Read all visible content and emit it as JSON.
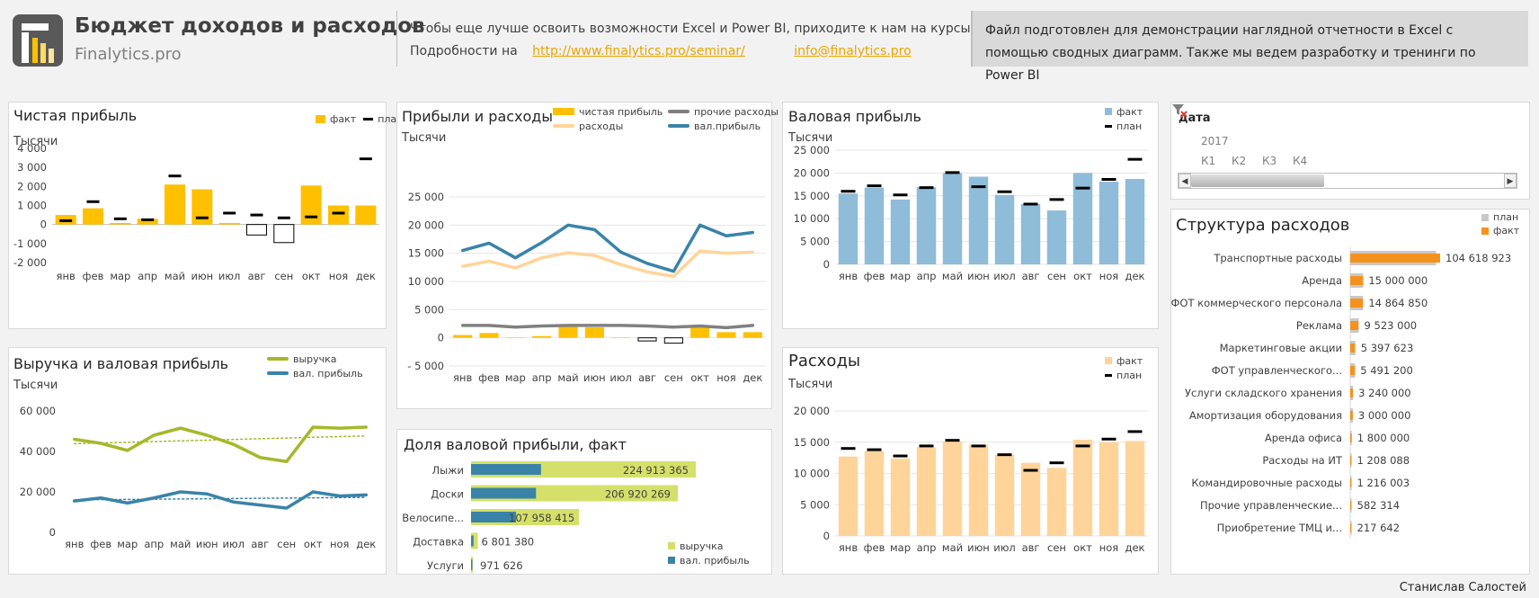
{
  "header": {
    "title": "Бюджет доходов и расходов",
    "subtitle": "Finalytics.pro",
    "promo_line1": "Чтобы еще лучше освоить возможности Excel и Power BI, приходите к нам на курсы.",
    "promo_line2_prefix": "Подробности на",
    "seminar_link": "http://www.finalytics.pro/seminar/",
    "email_link": "info@finalytics.pro",
    "note": "Файл подготовлен для демонстрации наглядной отчетности в Excel с помощью сводных диаграмм. Также мы ведем разработку и тренинги по Power BI"
  },
  "colors": {
    "yellow": "#ffc000",
    "lightblue": "#8fbcd8",
    "peach": "#ffd49a",
    "green": "#a6b82a",
    "lime": "#d4e06a",
    "blue": "#3a83a8",
    "gray": "#808080",
    "orange": "#f5921e",
    "lightgray": "#c8c8c8"
  },
  "months": [
    "янв",
    "фев",
    "мар",
    "апр",
    "май",
    "июн",
    "июл",
    "авг",
    "сен",
    "окт",
    "ноя",
    "дек"
  ],
  "chart_data": [
    {
      "id": "net_profit",
      "type": "bar",
      "title": "Чистая прибыль",
      "ylabel": "Тысячи",
      "ylim": [
        -2000,
        4000
      ],
      "yticks": [
        "4 000",
        "3 000",
        "2 000",
        "1 000",
        "0",
        "-1 000",
        "-2 000"
      ],
      "legend": [
        "факт",
        "план"
      ],
      "series": [
        {
          "name": "факт",
          "values": [
            500,
            850,
            80,
            300,
            2100,
            1850,
            80,
            -550,
            -950,
            2050,
            1000,
            1000
          ]
        },
        {
          "name": "план",
          "values": [
            200,
            1200,
            300,
            250,
            2550,
            350,
            600,
            500,
            350,
            400,
            600,
            3450
          ]
        }
      ]
    },
    {
      "id": "revenue_gross",
      "type": "line",
      "title": "Выручка и валовая прибыль",
      "ylabel": "Тысячи",
      "ylim": [
        0,
        60000
      ],
      "yticks": [
        "60 000",
        "40 000",
        "20 000",
        "0"
      ],
      "legend": [
        "выручка",
        "вал. прибыль"
      ],
      "series": [
        {
          "name": "выручка",
          "values": [
            46000,
            44000,
            40500,
            48000,
            51500,
            48000,
            43500,
            37000,
            35000,
            52000,
            51500,
            52000
          ]
        },
        {
          "name": "вал. прибыль",
          "values": [
            15500,
            17000,
            14500,
            17000,
            20000,
            19000,
            15000,
            13500,
            12000,
            20000,
            18000,
            18500
          ]
        }
      ]
    },
    {
      "id": "profit_expenses",
      "type": "line",
      "title": "Прибыли и расходы",
      "ylabel": "Тысячи",
      "ylim": [
        -5000,
        25000
      ],
      "yticks": [
        "25 000",
        "20 000",
        "15 000",
        "10 000",
        "5 000",
        "0",
        "- 5 000"
      ],
      "legend": [
        "чистая прибыль",
        "прочие расходы",
        "расходы",
        "вал.прибыль"
      ],
      "series": [
        {
          "name": "чистая прибыль",
          "values": [
            500,
            850,
            80,
            300,
            2100,
            1850,
            80,
            -550,
            -950,
            2050,
            1000,
            1000
          ]
        },
        {
          "name": "прочие расходы",
          "values": [
            2200,
            2200,
            1900,
            2100,
            2200,
            2200,
            2200,
            2100,
            1900,
            2100,
            1800,
            2200
          ]
        },
        {
          "name": "расходы",
          "values": [
            12700,
            13600,
            12400,
            14200,
            15100,
            14600,
            13000,
            11700,
            10900,
            15400,
            15000,
            15200
          ]
        },
        {
          "name": "вал.прибыль",
          "values": [
            15500,
            16800,
            14200,
            16900,
            20000,
            19200,
            15200,
            13200,
            11800,
            20000,
            18100,
            18700
          ]
        }
      ]
    },
    {
      "id": "gross_share",
      "type": "bar",
      "title": "Доля валовой прибыли, факт",
      "categories": [
        "Лыжи",
        "Доски",
        "Велосипе...",
        "Доставка",
        "Услуги"
      ],
      "labels": [
        "224 913 365",
        "206 920 269",
        "107 958 415",
        "6 801 380",
        "971 626"
      ],
      "legend": [
        "выручка",
        "вал. прибыль"
      ],
      "series": [
        {
          "name": "выручка",
          "values": [
            224913365,
            206920269,
            107958415,
            6801380,
            971626
          ]
        },
        {
          "name": "вал. прибыль",
          "values": [
            70000000,
            65000000,
            45000000,
            2500000,
            400000
          ]
        }
      ]
    },
    {
      "id": "gross_profit",
      "type": "bar",
      "title": "Валовая прибыль",
      "ylabel": "Тысячи",
      "ylim": [
        0,
        25000
      ],
      "yticks": [
        "25 000",
        "20 000",
        "15 000",
        "10 000",
        "5 000",
        "0"
      ],
      "legend": [
        "факт",
        "план"
      ],
      "series": [
        {
          "name": "факт",
          "values": [
            15500,
            16800,
            14200,
            16900,
            20000,
            19200,
            15200,
            13200,
            11800,
            20000,
            18100,
            18700
          ]
        },
        {
          "name": "план",
          "values": [
            16000,
            17200,
            15200,
            16800,
            20100,
            17000,
            15900,
            13200,
            14200,
            16700,
            18600,
            23000
          ]
        }
      ]
    },
    {
      "id": "expenses",
      "type": "bar",
      "title": "Расходы",
      "ylabel": "Тысячи",
      "ylim": [
        0,
        20000
      ],
      "yticks": [
        "20 000",
        "15 000",
        "10 000",
        "5 000",
        "0"
      ],
      "legend": [
        "факт",
        "план"
      ],
      "series": [
        {
          "name": "факт",
          "values": [
            12700,
            13600,
            12400,
            14200,
            15100,
            14600,
            13000,
            11700,
            10900,
            15400,
            15000,
            15200
          ]
        },
        {
          "name": "план",
          "values": [
            14000,
            13800,
            12800,
            14400,
            15300,
            14400,
            13000,
            10500,
            11700,
            14400,
            15500,
            16700
          ]
        }
      ]
    },
    {
      "id": "expense_structure",
      "type": "bar",
      "title": "Структура расходов",
      "legend": [
        "план",
        "факт"
      ],
      "categories": [
        "Транспортные расходы",
        "Аренда",
        "ФОТ коммерческого персонала",
        "Реклама",
        "Маркетинговые акции",
        "ФОТ управленческого...",
        "Услуги складского хранения",
        "Амортизация оборудования",
        "Аренда офиса",
        "Расходы на ИТ",
        "Командировочные расходы",
        "Прочие управленческие...",
        "Приобретение ТМЦ и..."
      ],
      "labels": [
        "104 618 923",
        "15 000 000",
        "14 864 850",
        "9 523 000",
        "5 397 623",
        "5 491 200",
        "3 240 000",
        "3 000 000",
        "1 800 000",
        "1 208 088",
        "1 216 003",
        "582 314",
        "217 642"
      ],
      "series": [
        {
          "name": "план",
          "values": [
            100000000,
            15000000,
            15000000,
            10000000,
            6000000,
            5500000,
            3200000,
            3000000,
            1800000,
            1200000,
            1200000,
            600000,
            200000
          ]
        },
        {
          "name": "факт",
          "values": [
            104618923,
            15000000,
            14864850,
            9523000,
            5397623,
            5491200,
            3240000,
            3000000,
            1800000,
            1208088,
            1216003,
            582314,
            217642
          ]
        }
      ]
    }
  ],
  "slicer": {
    "title": "дата",
    "year": "2017",
    "quarters": [
      "К1",
      "К2",
      "К3",
      "К4"
    ]
  },
  "author": "Станислав Салостей"
}
